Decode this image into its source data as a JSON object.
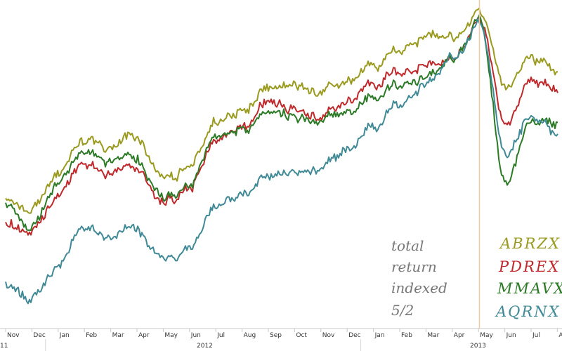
{
  "chart_data": {
    "type": "line",
    "title": "",
    "xlabel": "",
    "ylabel": "",
    "grid": false,
    "x_ticks": [
      "Nov",
      "Dec",
      "Jan",
      "Feb",
      "Mar",
      "Apr",
      "May",
      "Jun",
      "Jul",
      "Aug",
      "Sep",
      "Oct",
      "Nov",
      "Dec",
      "Jan",
      "Feb",
      "Mar",
      "Apr",
      "May",
      "Jun",
      "Jul",
      "Au"
    ],
    "year_labels": [
      "11",
      "2012",
      "2013"
    ],
    "x": [
      "2011-11",
      "2011-12",
      "2012-01",
      "2012-02",
      "2012-03",
      "2012-04",
      "2012-05",
      "2012-06",
      "2012-07",
      "2012-08",
      "2012-09",
      "2012-10",
      "2012-11",
      "2012-12",
      "2013-01",
      "2013-02",
      "2013-03",
      "2013-04",
      "2013-05",
      "2013-06",
      "2013-07",
      "2013-08"
    ],
    "reference_line": "2013-05-02",
    "annotation": {
      "lines": [
        "total",
        "return",
        "indexed",
        "5/2"
      ],
      "color": "#777777"
    },
    "series": [
      {
        "name": "ABRZX",
        "color": "#9a9a1e",
        "values": [
          60,
          52,
          70,
          81,
          79,
          82,
          66,
          70,
          90,
          98,
          109,
          106,
          101,
          106,
          116,
          121,
          128,
          125,
          134,
          105,
          118,
          112
        ]
      },
      {
        "name": "PDREX",
        "color": "#c0292b",
        "values": [
          50,
          43,
          61,
          71,
          68,
          69,
          56,
          61,
          82,
          91,
          103,
          96,
          90,
          98,
          108,
          112,
          116,
          116,
          131,
          90,
          108,
          104
        ]
      },
      {
        "name": "MMAVX",
        "color": "#2b7a25",
        "values": [
          58,
          45,
          66,
          76,
          73,
          73,
          58,
          62,
          84,
          90,
          99,
          93,
          89,
          93,
          102,
          107,
          111,
          116,
          131,
          65,
          91,
          90
        ]
      },
      {
        "name": "AQRNX",
        "color": "#3f8a96",
        "values": [
          25,
          15,
          32,
          45,
          41,
          44,
          32,
          36,
          55,
          63,
          72,
          70,
          69,
          78,
          90,
          99,
          108,
          116,
          129,
          77,
          93,
          86
        ]
      }
    ]
  }
}
